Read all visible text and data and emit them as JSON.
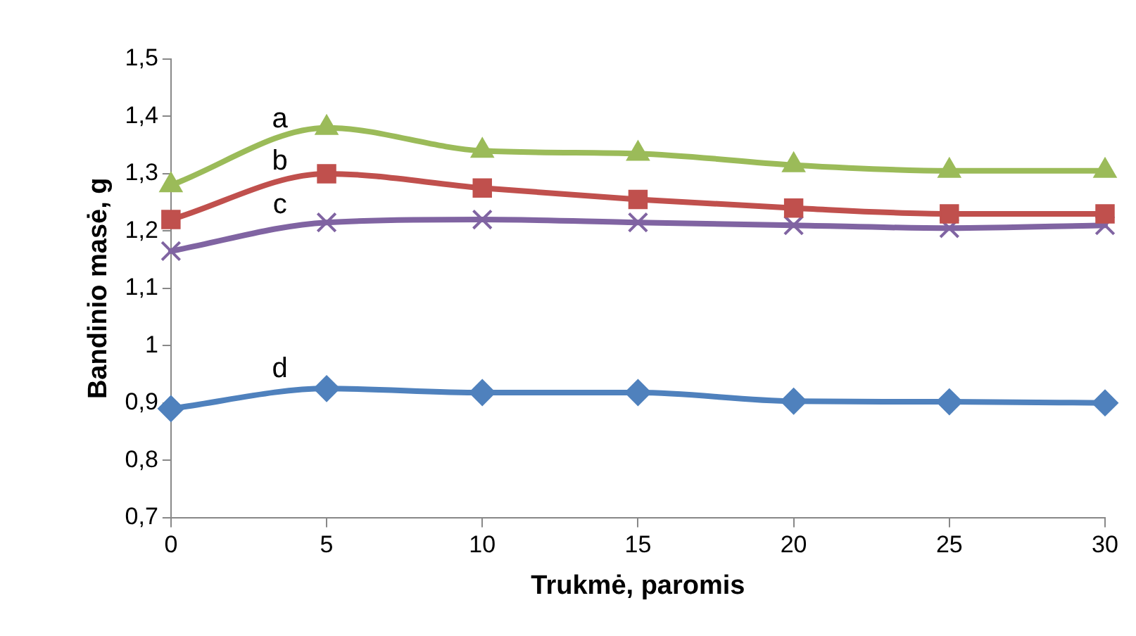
{
  "chart_data": {
    "type": "line",
    "xlabel": "Trukmė, paromis",
    "ylabel": "Bandinio masė, g",
    "x": [
      0,
      5,
      10,
      15,
      20,
      25,
      30
    ],
    "series": [
      {
        "name": "a",
        "color": "#9bbb59",
        "marker": "triangle",
        "values": [
          1.28,
          1.38,
          1.34,
          1.335,
          1.315,
          1.305,
          1.305
        ]
      },
      {
        "name": "b",
        "color": "#c0504d",
        "marker": "square",
        "values": [
          1.22,
          1.3,
          1.275,
          1.255,
          1.24,
          1.23,
          1.23
        ]
      },
      {
        "name": "c",
        "color": "#8064a2",
        "marker": "cross",
        "values": [
          1.165,
          1.215,
          1.22,
          1.215,
          1.21,
          1.205,
          1.21
        ]
      },
      {
        "name": "d",
        "color": "#4f81bd",
        "marker": "diamond",
        "values": [
          0.89,
          0.925,
          0.918,
          0.918,
          0.903,
          0.902,
          0.9
        ]
      }
    ],
    "xlim": [
      0,
      30
    ],
    "xticks": [
      0,
      5,
      10,
      15,
      20,
      25,
      30
    ],
    "ylim": [
      0.7,
      1.5
    ],
    "yticks": [
      {
        "value": 0.7,
        "label": "0,7"
      },
      {
        "value": 0.8,
        "label": "0,8"
      },
      {
        "value": 0.9,
        "label": "0,9"
      },
      1,
      {
        "value": 1.1,
        "label": "1,1"
      },
      {
        "value": 1.2,
        "label": "1,2"
      },
      {
        "value": 1.3,
        "label": "1,3"
      },
      {
        "value": 1.4,
        "label": "1,4"
      },
      {
        "value": 1.5,
        "label": "1,5"
      }
    ],
    "grid": false,
    "legend": false,
    "line_style": "solid"
  }
}
